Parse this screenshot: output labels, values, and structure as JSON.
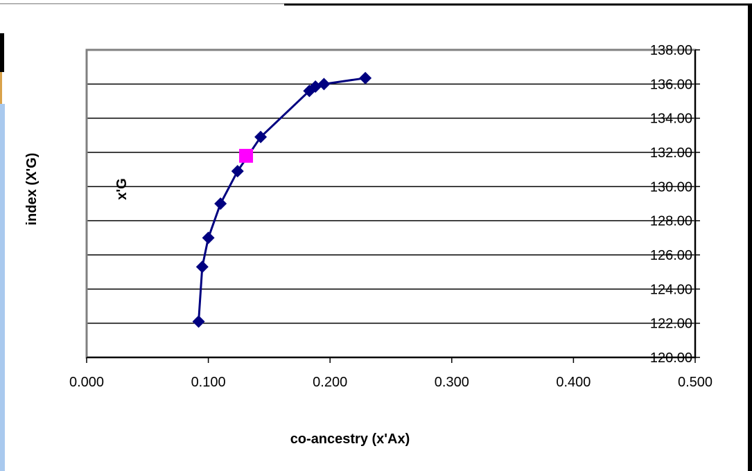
{
  "colors": {
    "series": "#000080",
    "highlight": "#ff00ff",
    "grid": "#000000",
    "plot_border": "#808080"
  },
  "chart_data": {
    "type": "scatter",
    "title": "",
    "xlabel": "co-ancestry (x'Ax)",
    "ylabel": "index  (X'G)",
    "y_inner_label": "x'G",
    "xlim": [
      0,
      0.5
    ],
    "ylim": [
      120,
      138
    ],
    "x_ticks": [
      "0.000",
      "0.100",
      "0.200",
      "0.300",
      "0.400",
      "0.500"
    ],
    "y_ticks": [
      "120.00",
      "122.00",
      "124.00",
      "126.00",
      "128.00",
      "130.00",
      "132.00",
      "134.00",
      "136.00",
      "138.00"
    ],
    "y_axis_position": "right",
    "grid": true,
    "legend": "none",
    "series": [
      {
        "marker": "diamond",
        "line": true,
        "x": [
          0.092,
          0.095,
          0.1,
          0.11,
          0.124,
          0.143,
          0.183,
          0.188,
          0.195,
          0.229
        ],
        "y": [
          122.1,
          125.3,
          127.0,
          129.0,
          130.9,
          132.9,
          135.6,
          135.85,
          136.0,
          136.35
        ]
      },
      {
        "marker": "square",
        "line": false,
        "x": [
          0.131
        ],
        "y": [
          131.8
        ]
      }
    ]
  }
}
